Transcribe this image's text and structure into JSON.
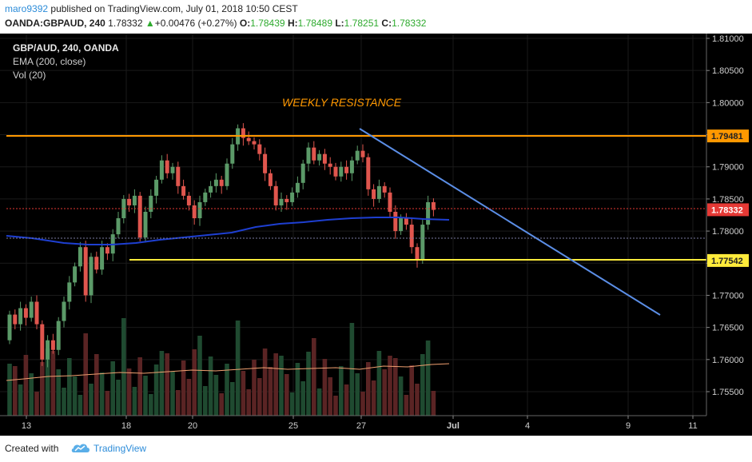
{
  "header": {
    "author": "maro9392",
    "published_text": "published on TradingView.com, July 01, 2018 10:50 CEST",
    "symbol": "OANDA:GBPAUD, 240",
    "last": "1.78332",
    "change_arrow": "▲",
    "change": "+0.00476 (+0.27%)",
    "o_label": "O:",
    "o_val": "1.78439",
    "h_label": "H:",
    "h_val": "1.78489",
    "l_label": "L:",
    "l_val": "1.78251",
    "c_label": "C:",
    "c_val": "1.78332"
  },
  "legend": {
    "title": "GBP/AUD, 240, OANDA",
    "ema": "EMA (200, close)",
    "vol": "Vol (20)"
  },
  "annotation": {
    "text": "WEEKLY RESISTANCE"
  },
  "price_axis": {
    "ticks": [
      "1.81000",
      "1.80500",
      "1.80000",
      "1.79500",
      "1.79000",
      "1.78500",
      "1.78000",
      "1.77500",
      "1.77000",
      "1.76500",
      "1.76000",
      "1.75500"
    ],
    "badges": [
      {
        "label": "1.79481",
        "color": "#ff9800"
      },
      {
        "label": "1.78332",
        "color": "#e53935"
      },
      {
        "label": "1.77542",
        "color": "#ffeb3b"
      }
    ]
  },
  "time_axis": {
    "ticks": [
      "13",
      "18",
      "20",
      "25",
      "27",
      "Jul",
      "4",
      "9",
      "11"
    ]
  },
  "colors": {
    "bull": "#5b9a68",
    "bear": "#e0564e",
    "ema": "#1e3fd1",
    "resistance": "#ff9800",
    "support": "#ffeb3b",
    "trendline": "#5b8ee6",
    "vol_ma": "#f0a070"
  },
  "footer": {
    "created_with": "Created with",
    "brand": "TradingView",
    "logo_icon": "tradingview-cloud-icon"
  }
}
